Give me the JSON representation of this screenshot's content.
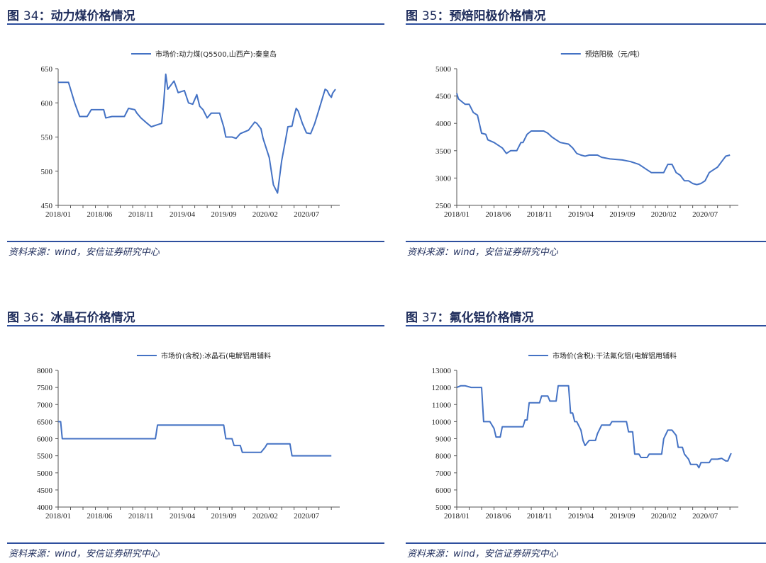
{
  "source_label": "资料来源：wind，安信证券研究中心",
  "panels": [
    {
      "title_prefix": "图 ",
      "title_num": "34",
      "title_sep": "：",
      "title_text": "动力煤价格情况",
      "chart_data": {
        "type": "line",
        "series": [
          {
            "name": "市场价:动力煤(Q5500,山西产):秦皇岛",
            "color": "#4472c4",
            "points": [
              [
                0,
                630
              ],
              [
                2.5,
                630
              ],
              [
                3,
                620
              ],
              [
                4,
                600
              ],
              [
                5.2,
                580
              ],
              [
                7,
                580
              ],
              [
                8,
                590
              ],
              [
                11,
                590
              ],
              [
                11.5,
                578
              ],
              [
                13,
                580
              ],
              [
                16,
                580
              ],
              [
                17,
                592
              ],
              [
                18.5,
                590
              ],
              [
                19,
                585
              ],
              [
                20,
                578
              ],
              [
                21.5,
                570
              ],
              [
                22.5,
                565
              ],
              [
                24,
                568
              ],
              [
                25,
                570
              ],
              [
                25.5,
                600
              ],
              [
                26,
                642
              ],
              [
                26.5,
                620
              ],
              [
                27.5,
                628
              ],
              [
                28,
                632
              ],
              [
                29,
                615
              ],
              [
                30.5,
                618
              ],
              [
                31.5,
                600
              ],
              [
                32.5,
                598
              ],
              [
                33.5,
                612
              ],
              [
                34.2,
                595
              ],
              [
                35,
                590
              ],
              [
                36,
                578
              ],
              [
                37,
                585
              ],
              [
                39,
                585
              ],
              [
                40,
                565
              ],
              [
                40.5,
                550
              ],
              [
                42,
                550
              ],
              [
                43,
                548
              ],
              [
                44,
                555
              ],
              [
                46,
                560
              ],
              [
                47.5,
                572
              ],
              [
                48,
                570
              ],
              [
                49,
                562
              ],
              [
                49.5,
                548
              ],
              [
                51,
                520
              ],
              [
                52,
                480
              ],
              [
                53,
                468
              ],
              [
                54,
                515
              ],
              [
                55,
                548
              ],
              [
                55.5,
                565
              ],
              [
                56.5,
                566
              ],
              [
                57,
                580
              ],
              [
                57.5,
                592
              ],
              [
                58,
                588
              ],
              [
                59,
                570
              ],
              [
                60,
                556
              ],
              [
                61,
                555
              ],
              [
                62,
                570
              ],
              [
                63,
                590
              ],
              [
                64,
                610
              ],
              [
                64.5,
                620
              ],
              [
                65,
                618
              ],
              [
                65.5,
                612
              ],
              [
                66,
                608
              ],
              [
                66.3,
                614
              ],
              [
                67,
                620
              ]
            ]
          }
        ],
        "x_ticks": [
          "2018/01",
          "2018/06",
          "2018/11",
          "2019/04",
          "2019/09",
          "2020/02",
          "2020/07"
        ],
        "x_range": [
          0,
          67
        ],
        "ylim": [
          450,
          650
        ],
        "y_ticks": [
          450,
          500,
          550,
          600,
          650
        ],
        "grid": false,
        "legend": "top-center"
      }
    },
    {
      "title_prefix": "图 ",
      "title_num": "35",
      "title_sep": "：",
      "title_text": "预焙阳极价格情况",
      "chart_data": {
        "type": "line",
        "series": [
          {
            "name": "预焙阳极（元/吨）",
            "color": "#4472c4",
            "points": [
              [
                0,
                4550
              ],
              [
                0.4,
                4450
              ],
              [
                1.5,
                4380
              ],
              [
                2,
                4350
              ],
              [
                3,
                4350
              ],
              [
                4,
                4200
              ],
              [
                5,
                4150
              ],
              [
                6,
                3820
              ],
              [
                7,
                3800
              ],
              [
                7.5,
                3700
              ],
              [
                9,
                3650
              ],
              [
                10,
                3600
              ],
              [
                11,
                3550
              ],
              [
                12,
                3450
              ],
              [
                13,
                3500
              ],
              [
                14.5,
                3500
              ],
              [
                15.5,
                3650
              ],
              [
                16,
                3650
              ],
              [
                17,
                3800
              ],
              [
                18,
                3860
              ],
              [
                21,
                3860
              ],
              [
                22,
                3820
              ],
              [
                23,
                3750
              ],
              [
                24,
                3700
              ],
              [
                25,
                3650
              ],
              [
                27,
                3620
              ],
              [
                28,
                3550
              ],
              [
                29,
                3450
              ],
              [
                30,
                3420
              ],
              [
                31,
                3400
              ],
              [
                32,
                3420
              ],
              [
                34,
                3420
              ],
              [
                35,
                3380
              ],
              [
                37,
                3350
              ],
              [
                40,
                3330
              ],
              [
                42,
                3300
              ],
              [
                44,
                3250
              ],
              [
                46,
                3150
              ],
              [
                47,
                3100
              ],
              [
                50,
                3100
              ],
              [
                51,
                3250
              ],
              [
                52,
                3250
              ],
              [
                53,
                3100
              ],
              [
                54,
                3050
              ],
              [
                55,
                2950
              ],
              [
                56,
                2950
              ],
              [
                57,
                2900
              ],
              [
                58,
                2880
              ],
              [
                59,
                2900
              ],
              [
                60,
                2950
              ],
              [
                61,
                3100
              ],
              [
                62,
                3150
              ],
              [
                63,
                3200
              ],
              [
                64,
                3300
              ],
              [
                65,
                3400
              ],
              [
                66,
                3420
              ]
            ]
          }
        ],
        "x_ticks": [
          "2018/01",
          "2018/06",
          "2018/11",
          "2019/04",
          "2019/09",
          "2020/02",
          "2020/07"
        ],
        "x_range": [
          0,
          67
        ],
        "ylim": [
          2500,
          5000
        ],
        "y_ticks": [
          2500,
          3000,
          3500,
          4000,
          4500,
          5000
        ],
        "grid": false,
        "legend": "top-center"
      }
    },
    {
      "title_prefix": "图 ",
      "title_num": "36",
      "title_sep": "：",
      "title_text": "冰晶石价格情况",
      "chart_data": {
        "type": "line",
        "series": [
          {
            "name": "市场价(含税):冰晶石(电解铝用辅料",
            "color": "#4472c4",
            "points": [
              [
                0,
                6500
              ],
              [
                0.6,
                6500
              ],
              [
                1,
                6000
              ],
              [
                23.5,
                6000
              ],
              [
                24,
                6400
              ],
              [
                40,
                6400
              ],
              [
                40.5,
                6000
              ],
              [
                42,
                6000
              ],
              [
                42.5,
                5800
              ],
              [
                44,
                5800
              ],
              [
                44.5,
                5600
              ],
              [
                49,
                5600
              ],
              [
                50,
                5750
              ],
              [
                50.5,
                5850
              ],
              [
                56,
                5850
              ],
              [
                56.5,
                5500
              ],
              [
                66,
                5500
              ]
            ]
          }
        ],
        "x_ticks": [
          "2018/01",
          "2018/06",
          "2018/11",
          "2019/04",
          "2019/09",
          "2020/02",
          "2020/07"
        ],
        "x_range": [
          0,
          67
        ],
        "ylim": [
          4000,
          8000
        ],
        "y_ticks": [
          4000,
          4500,
          5000,
          5500,
          6000,
          6500,
          7000,
          7500,
          8000
        ],
        "grid": false,
        "legend": "top-center"
      }
    },
    {
      "title_prefix": "图 ",
      "title_num": "37",
      "title_sep": "：",
      "title_text": "氟化铝价格情况",
      "chart_data": {
        "type": "line",
        "series": [
          {
            "name": "市场价(含税):干法氟化铝(电解铝用辅料",
            "color": "#4472c4",
            "points": [
              [
                0,
                12000
              ],
              [
                1,
                12100
              ],
              [
                2,
                12100
              ],
              [
                3.5,
                12000
              ],
              [
                6,
                12000
              ],
              [
                6.5,
                10000
              ],
              [
                8,
                10000
              ],
              [
                9,
                9600
              ],
              [
                9.5,
                9100
              ],
              [
                10.5,
                9100
              ],
              [
                11,
                9700
              ],
              [
                16,
                9700
              ],
              [
                16.5,
                10100
              ],
              [
                17,
                10100
              ],
              [
                17.5,
                11100
              ],
              [
                20,
                11100
              ],
              [
                20.5,
                11500
              ],
              [
                22,
                11500
              ],
              [
                22.5,
                11200
              ],
              [
                24,
                11200
              ],
              [
                24.5,
                12100
              ],
              [
                27,
                12100
              ],
              [
                27.5,
                10500
              ],
              [
                28,
                10500
              ],
              [
                28.5,
                10000
              ],
              [
                29,
                10000
              ],
              [
                30,
                9500
              ],
              [
                30.5,
                8900
              ],
              [
                31,
                8600
              ],
              [
                32,
                8900
              ],
              [
                33.5,
                8900
              ],
              [
                34,
                9300
              ],
              [
                35,
                9800
              ],
              [
                37,
                9800
              ],
              [
                37.5,
                10000
              ],
              [
                41,
                10000
              ],
              [
                41.5,
                9400
              ],
              [
                42.5,
                9400
              ],
              [
                43,
                8100
              ],
              [
                44,
                8100
              ],
              [
                44.5,
                7900
              ],
              [
                46,
                7900
              ],
              [
                46.5,
                8100
              ],
              [
                49.5,
                8100
              ],
              [
                50,
                9000
              ],
              [
                51,
                9500
              ],
              [
                52,
                9500
              ],
              [
                53,
                9200
              ],
              [
                53.5,
                8500
              ],
              [
                54.5,
                8500
              ],
              [
                55,
                8100
              ],
              [
                56,
                7800
              ],
              [
                56.5,
                7500
              ],
              [
                58,
                7500
              ],
              [
                58.5,
                7300
              ],
              [
                59,
                7600
              ],
              [
                61,
                7600
              ],
              [
                61.5,
                7800
              ],
              [
                63,
                7800
              ],
              [
                64,
                7850
              ],
              [
                65,
                7700
              ],
              [
                65.5,
                7700
              ],
              [
                66,
                8000
              ],
              [
                66.3,
                8150
              ]
            ]
          }
        ],
        "x_ticks": [
          "2018/01",
          "2018/06",
          "2018/11",
          "2019/04",
          "2019/09",
          "2020/02",
          "2020/07"
        ],
        "x_range": [
          0,
          67
        ],
        "ylim": [
          5000,
          13000
        ],
        "y_ticks": [
          5000,
          6000,
          7000,
          8000,
          9000,
          10000,
          11000,
          12000,
          13000
        ],
        "grid": false,
        "legend": "top-center"
      }
    }
  ]
}
